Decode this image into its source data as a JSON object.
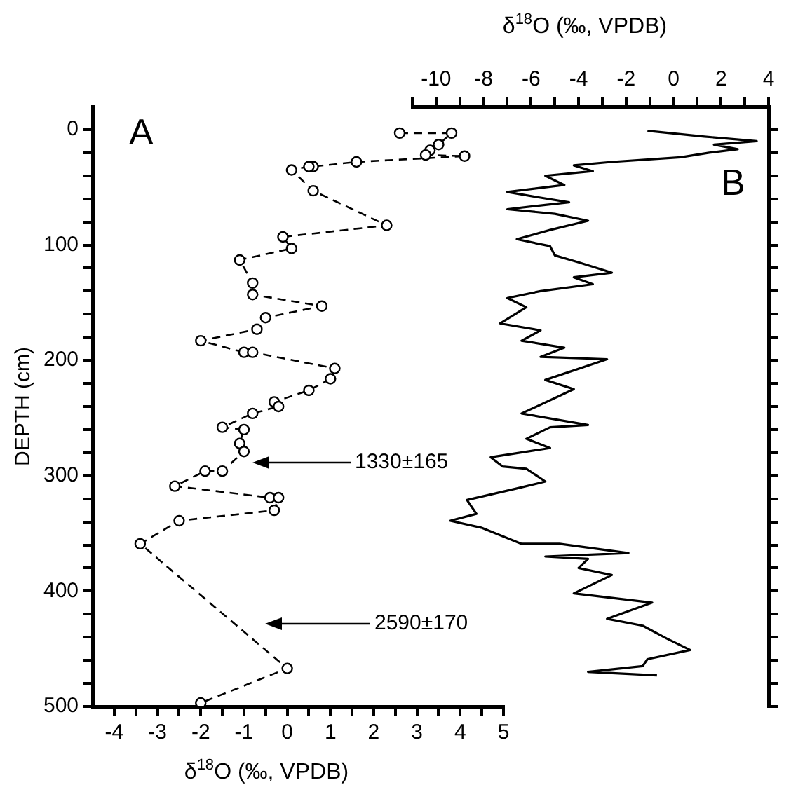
{
  "chart_data": [
    {
      "type": "line",
      "xlabel": "δ$^{18}$O (‰, VPDB)",
      "ylabel": "DEPTH (cm)",
      "xlim": [
        -4.5,
        5
      ],
      "xticks": [
        -4,
        {
          "value": -3.5,
          "label": null
        },
        -3,
        {
          "value": -2.5,
          "label": null
        },
        -2,
        {
          "value": -1.5,
          "label": null
        },
        -1,
        {
          "value": -0.5,
          "label": null
        },
        0,
        {
          "value": 0.5,
          "label": null
        },
        1,
        {
          "value": 1.5,
          "label": null
        },
        2,
        {
          "value": 2.5,
          "label": null
        },
        3,
        {
          "value": 3.5,
          "label": null
        },
        4,
        {
          "value": 4.5,
          "label": null
        },
        5
      ],
      "ylim": [
        500,
        -20
      ],
      "yticks": [
        0,
        {
          "value": 20,
          "label": null
        },
        {
          "value": 40,
          "label": null
        },
        {
          "value": 60,
          "label": null
        },
        {
          "value": 80,
          "label": null
        },
        100,
        {
          "value": 120,
          "label": null
        },
        {
          "value": 140,
          "label": null
        },
        {
          "value": 160,
          "label": null
        },
        {
          "value": 180,
          "label": null
        },
        200,
        {
          "value": 220,
          "label": null
        },
        {
          "value": 240,
          "label": null
        },
        {
          "value": 260,
          "label": null
        },
        {
          "value": 280,
          "label": null
        },
        300,
        {
          "value": 320,
          "label": null
        },
        {
          "value": 340,
          "label": null
        },
        {
          "value": 360,
          "label": null
        },
        {
          "value": 380,
          "label": null
        },
        400,
        {
          "value": 420,
          "label": null
        },
        {
          "value": 440,
          "label": null
        },
        {
          "value": 460,
          "label": null
        },
        {
          "value": 480,
          "label": null
        },
        500
      ],
      "marker": "circle",
      "line_style": "dashed",
      "series": [
        {
          "color": "#000000",
          "x": [
            2.6,
            3.8,
            3.5,
            3.3,
            3.2,
            4.1,
            1.6,
            0.6,
            0.5,
            0.1,
            0.6,
            2.3,
            -0.1,
            0.1,
            -1.1,
            -0.8,
            -0.8,
            0.8,
            -0.5,
            -0.7,
            -2.0,
            -1.0,
            -0.8,
            1.1,
            1.0,
            0.5,
            -0.3,
            -0.2,
            -0.8,
            -1.5,
            -1.0,
            -1.1,
            -1.0,
            -1.5,
            -1.9,
            -2.6,
            -0.4,
            -0.2,
            -0.3,
            -2.5,
            -3.4,
            0.0,
            -2.0
          ],
          "values": [
            3,
            3,
            13,
            18,
            22,
            23,
            28,
            32,
            32,
            35,
            53,
            83,
            93,
            103,
            113,
            133,
            143,
            153,
            163,
            173,
            183,
            193,
            193,
            207,
            216,
            226,
            236,
            240,
            246,
            258,
            260,
            272,
            279,
            296,
            296,
            309,
            319,
            319,
            330,
            339,
            359,
            467,
            497
          ]
        }
      ],
      "annotations": [
        "A",
        "1330±165",
        "2590±170"
      ]
    },
    {
      "type": "line",
      "xlabel": "δ$^{18}$O (‰, VPDB)",
      "xlim": [
        -11,
        4
      ],
      "xticks": [
        {
          "value": -11,
          "label": null
        },
        -10,
        {
          "value": -9,
          "label": null
        },
        -8,
        {
          "value": -7,
          "label": null
        },
        -6,
        {
          "value": -5,
          "label": null
        },
        -4,
        {
          "value": -3,
          "label": null
        },
        -2,
        {
          "value": -1,
          "label": null
        },
        0,
        {
          "value": 1,
          "label": null
        },
        2,
        {
          "value": 3,
          "label": null
        },
        4
      ],
      "ylim": [
        500,
        -20
      ],
      "yticks": [
        0,
        {
          "value": 20,
          "label": null
        },
        {
          "value": 40,
          "label": null
        },
        {
          "value": 60,
          "label": null
        },
        {
          "value": 80,
          "label": null
        },
        100,
        {
          "value": 120,
          "label": null
        },
        {
          "value": 140,
          "label": null
        },
        {
          "value": 160,
          "label": null
        },
        {
          "value": 180,
          "label": null
        },
        200,
        {
          "value": 220,
          "label": null
        },
        {
          "value": 240,
          "label": null
        },
        {
          "value": 260,
          "label": null
        },
        {
          "value": 280,
          "label": null
        },
        300,
        {
          "value": 320,
          "label": null
        },
        {
          "value": 340,
          "label": null
        },
        {
          "value": 360,
          "label": null
        },
        {
          "value": 380,
          "label": null
        },
        400,
        {
          "value": 420,
          "label": null
        },
        {
          "value": 440,
          "label": null
        },
        {
          "value": 460,
          "label": null
        },
        {
          "value": 480,
          "label": null
        },
        500
      ],
      "tick_labels": "x",
      "marker": "none",
      "line_style": "solid",
      "series": [
        {
          "color": "#000000",
          "x": [
            -1.1,
            1.3,
            3.5,
            1.7,
            2.7,
            1.5,
            0.3,
            -2.6,
            -4.2,
            -3.4,
            -5.4,
            -4.6,
            -7.0,
            -5.6,
            -4.4,
            -7.0,
            -5.0,
            -3.6,
            -5.2,
            -6.6,
            -5.2,
            -5.0,
            -4.0,
            -2.6,
            -4.2,
            -3.4,
            -5.6,
            -7.0,
            -6.2,
            -7.3,
            -5.6,
            -6.4,
            -4.6,
            -5.6,
            -2.8,
            -5.4,
            -4.2,
            -6.4,
            -3.6,
            -5.2,
            -6.2,
            -5.2,
            -7.7,
            -7.2,
            -6.2,
            -5.4,
            -6.6,
            -8.7,
            -8.3,
            -9.4,
            -8.1,
            -6.4,
            -4.8,
            -1.9,
            -5.4,
            -3.6,
            -4.0,
            -2.6,
            -4.2,
            -0.9,
            -2.8,
            -1.3,
            -0.3,
            0.7,
            -1.1,
            -1.3,
            -3.6,
            -0.7
          ],
          "values": [
            1,
            6,
            10,
            13,
            17,
            20,
            24,
            28,
            31,
            36,
            40,
            48,
            54,
            59,
            63,
            69,
            73,
            79,
            87,
            95,
            101,
            109,
            115,
            124,
            128,
            134,
            140,
            146,
            154,
            168,
            174,
            183,
            189,
            197,
            199,
            217,
            225,
            246,
            256,
            258,
            268,
            276,
            284,
            292,
            294,
            305,
            311,
            321,
            333,
            339,
            345,
            359,
            359,
            367,
            370,
            372,
            380,
            386,
            402,
            410,
            424,
            430,
            441,
            451,
            459,
            465,
            470,
            473
          ]
        }
      ],
      "annotations": [
        "B"
      ]
    }
  ]
}
